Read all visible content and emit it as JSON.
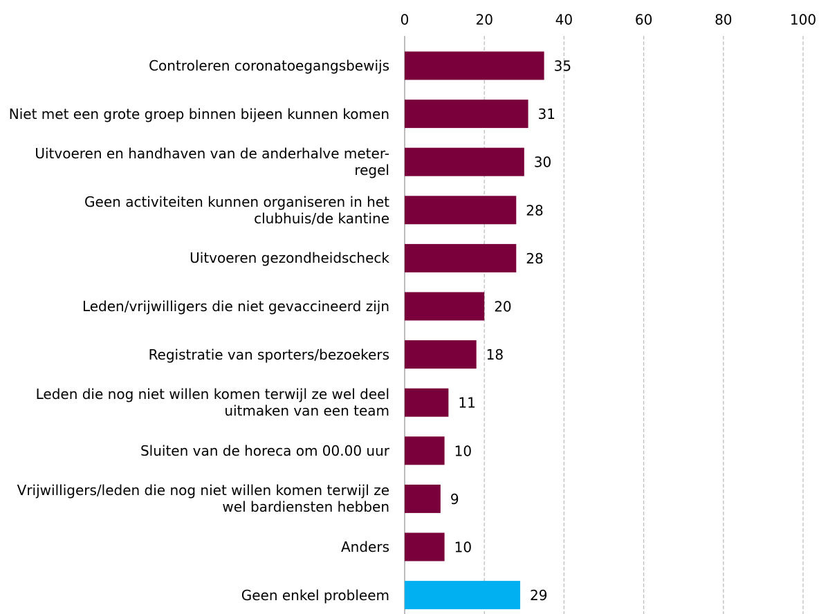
{
  "chart_data": {
    "type": "bar",
    "orientation": "horizontal",
    "categories": [
      "Controleren coronatoegangsbewijs",
      "Niet met een grote groep binnen bijeen kunnen komen",
      "Uitvoeren en handhaven van de anderhalve meter-regel",
      "Geen activiteiten kunnen organiseren in het clubhuis/de kantine",
      "Uitvoeren gezondheidscheck",
      "Leden/vrijwilligers die niet gevaccineerd zijn",
      "Registratie van sporters/bezoekers",
      "Leden die nog niet willen komen terwijl ze wel deel uitmaken van een team",
      "Sluiten van de horeca om 00.00 uur",
      "Vrijwilligers/leden die nog niet willen komen terwijl ze wel bardiensten hebben",
      "Anders",
      "Geen enkel probleem"
    ],
    "values": [
      35,
      31,
      30,
      28,
      28,
      20,
      18,
      11,
      10,
      9,
      10,
      29
    ],
    "colors": [
      "#7a003c",
      "#7a003c",
      "#7a003c",
      "#7a003c",
      "#7a003c",
      "#7a003c",
      "#7a003c",
      "#7a003c",
      "#7a003c",
      "#7a003c",
      "#7a003c",
      "#00b0f0"
    ],
    "xlim": [
      0,
      100
    ],
    "xticks": [
      0,
      20,
      40,
      60,
      80,
      100
    ],
    "grid": true
  }
}
